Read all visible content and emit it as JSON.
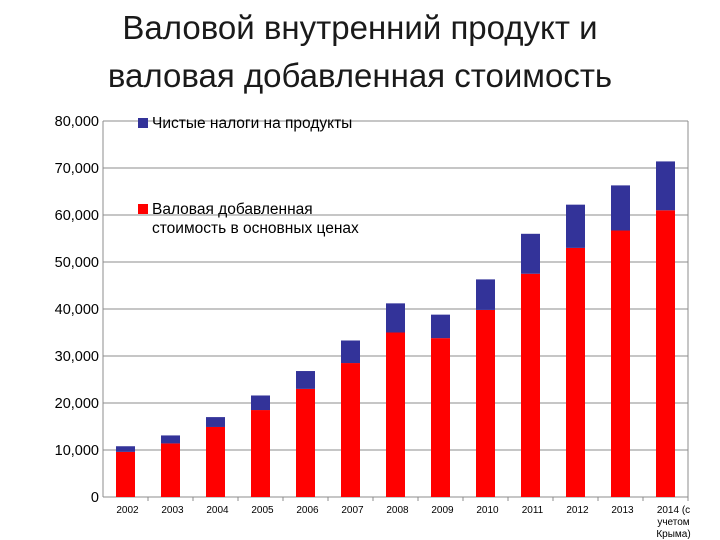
{
  "title_line1": "Валовой внутренний продукт и",
  "title_line2": "валовая добавленная стоимость",
  "chart_data": {
    "type": "bar",
    "stacked": true,
    "categories": [
      "2002",
      "2003",
      "2004",
      "2005",
      "2006",
      "2007",
      "2008",
      "2009",
      "2010",
      "2011",
      "2012",
      "2013",
      "2014 (с учетом Крыма)"
    ],
    "series": [
      {
        "name": "Валовая добавленная стоимость в основных ценах",
        "color": "#ff0000",
        "values": [
          9600,
          11400,
          14900,
          18500,
          23000,
          28500,
          35000,
          33800,
          39800,
          47500,
          53000,
          56700,
          61000
        ]
      },
      {
        "name": "Чистые налоги на продукты",
        "color": "#333399",
        "values": [
          1200,
          1700,
          2100,
          3100,
          3800,
          4800,
          6200,
          5000,
          6500,
          8500,
          9200,
          9600,
          10400
        ]
      }
    ],
    "ylim": [
      0,
      80000
    ],
    "yticks": [
      "0",
      "10,000",
      "20,000",
      "30,000",
      "40,000",
      "50,000",
      "60,000",
      "70,000",
      "80,000"
    ],
    "grid": true,
    "legend_position": "top-left"
  }
}
